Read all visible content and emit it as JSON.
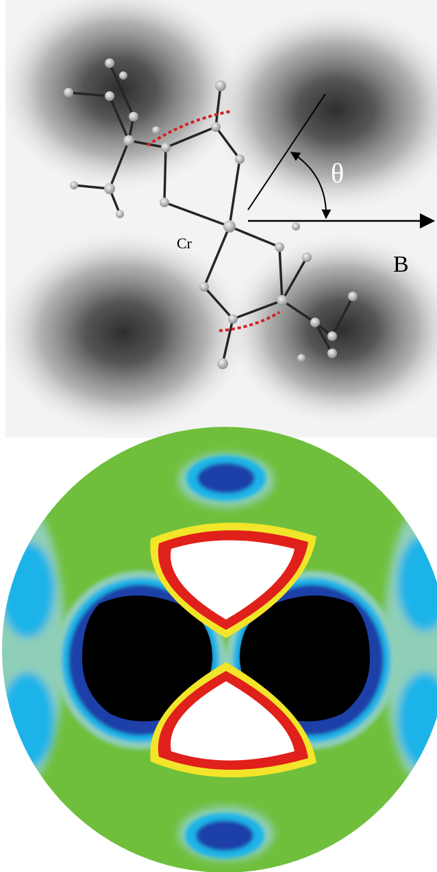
{
  "labels": {
    "metal_atom": "Cr",
    "angle_symbol": "θ",
    "field_vector": "B"
  },
  "colors": {
    "background_top": "#f4f4f4",
    "shadow": "#3a3a3a",
    "bond": "#262626",
    "atom": "#bdbdbd",
    "highlight": "#d42020",
    "annotation": "#000000",
    "map_green": "#6fbf3c",
    "map_teal": "#8fcfb8",
    "map_cyan": "#1fb4e8",
    "map_blue": "#1a3fa8",
    "map_black": "#000000",
    "map_yellow": "#f2e52a",
    "map_red": "#e0201a",
    "map_white": "#ffffff"
  }
}
